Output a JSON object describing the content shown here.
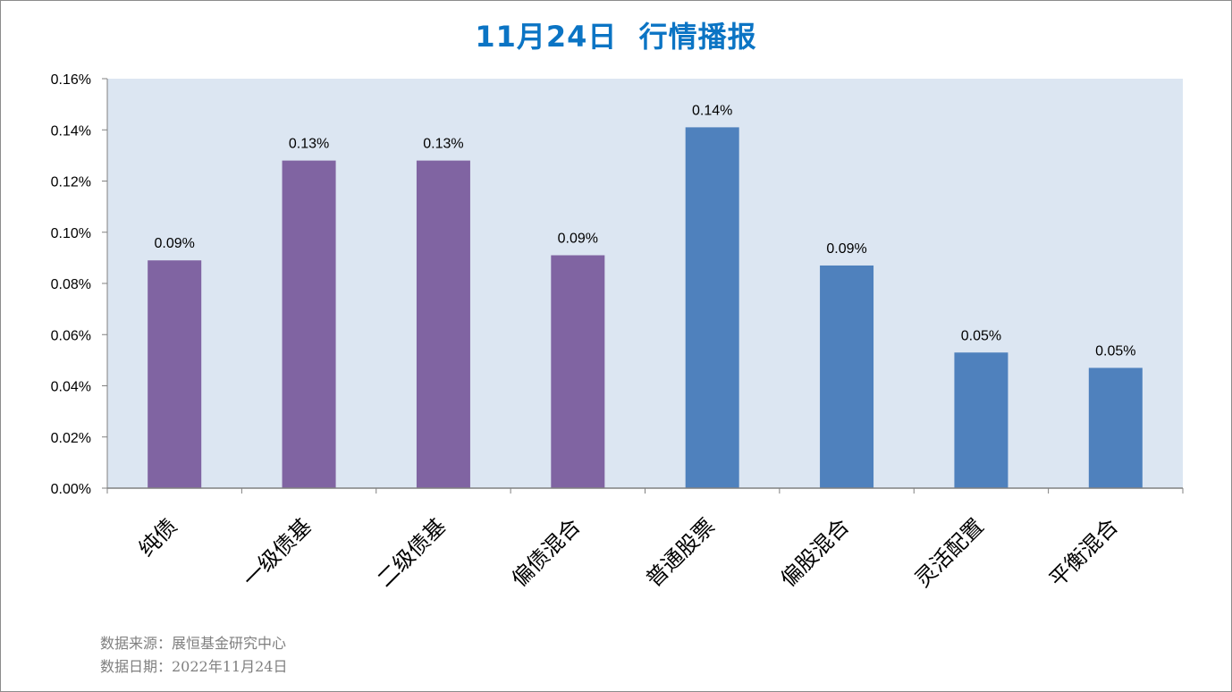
{
  "title": "11月24日  行情播报",
  "chart_data": {
    "type": "bar",
    "title": "11月24日  行情播报",
    "categories": [
      "纯债",
      "一级债基",
      "二级债基",
      "偏债混合",
      "普通股票",
      "偏股混合",
      "灵活配置",
      "平衡混合"
    ],
    "values": [
      0.089,
      0.128,
      0.128,
      0.091,
      0.141,
      0.087,
      0.053,
      0.047
    ],
    "data_labels": [
      "0.09%",
      "0.13%",
      "0.13%",
      "0.09%",
      "0.14%",
      "0.09%",
      "0.05%",
      "0.05%"
    ],
    "bar_colors": [
      "#8064a2",
      "#8064a2",
      "#8064a2",
      "#8064a2",
      "#4f81bd",
      "#4f81bd",
      "#4f81bd",
      "#4f81bd"
    ],
    "y_ticks": [
      0,
      0.02,
      0.04,
      0.06,
      0.08,
      0.1,
      0.12,
      0.14,
      0.16
    ],
    "y_tick_labels": [
      "0.00%",
      "0.02%",
      "0.04%",
      "0.06%",
      "0.08%",
      "0.10%",
      "0.12%",
      "0.14%",
      "0.16%"
    ],
    "ylim": [
      0,
      0.16
    ],
    "xlabel": "",
    "ylabel": "",
    "grid": false,
    "plot_background": "#dce6f2",
    "legend": "none"
  },
  "footer": {
    "source": "数据来源：展恒基金研究中心",
    "date": "数据日期：2022年11月24日"
  }
}
